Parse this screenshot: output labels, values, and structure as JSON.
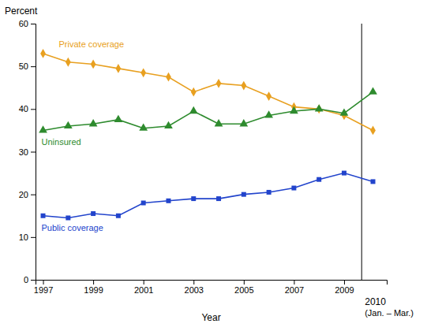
{
  "chart_data": {
    "type": "line",
    "xlabel": "Year",
    "ylabel": "Percent",
    "x": [
      1997,
      1998,
      1999,
      2000,
      2001,
      2002,
      2003,
      2004,
      2005,
      2006,
      2007,
      2008,
      2009,
      2010.15
    ],
    "series": [
      {
        "name": "Private coverage",
        "color": "#E8A020",
        "marker": "diamond",
        "line_style": "solid",
        "values": [
          53.0,
          51.0,
          50.5,
          49.5,
          48.5,
          47.5,
          44.0,
          46.0,
          45.5,
          43.0,
          40.5,
          40.0,
          38.5,
          35.0
        ]
      },
      {
        "name": "Uninsured",
        "color": "#2E8B2E",
        "marker": "triangle",
        "line_style": "solid",
        "values": [
          35.0,
          36.0,
          36.5,
          37.5,
          35.5,
          36.0,
          39.5,
          36.5,
          36.5,
          38.5,
          39.5,
          40.0,
          39.0,
          44.0
        ]
      },
      {
        "name": "Public coverage",
        "color": "#2244CC",
        "marker": "square",
        "line_style": "solid",
        "values": [
          15.0,
          14.5,
          15.5,
          15.0,
          18.0,
          18.5,
          19.0,
          19.0,
          20.0,
          20.5,
          21.5,
          23.5,
          25.0,
          23.0
        ]
      }
    ],
    "xlim": [
      1996.7,
      2010.7
    ],
    "xticks": [
      1997,
      1999,
      2001,
      2003,
      2005,
      2007,
      2009
    ],
    "ylim": [
      0,
      60
    ],
    "yticks": [
      0,
      10,
      20,
      30,
      40,
      50,
      60
    ],
    "vline": 2009.7,
    "annotations": [
      "2010",
      "(Jan. – Mar.)"
    ],
    "grid": false
  }
}
